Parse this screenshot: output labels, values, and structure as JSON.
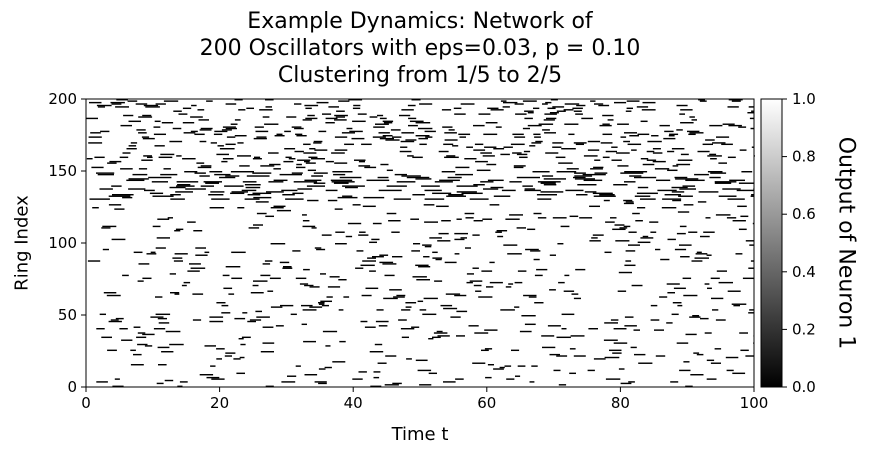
{
  "chart_data": {
    "type": "heatmap",
    "title_lines": [
      "Example Dynamics: Network of",
      "200 Oscillators with eps=0.03, p = 0.10",
      "Clustering from 1/5 to 2/5"
    ],
    "xlabel": "Time t",
    "ylabel": "Ring Index",
    "xlim": [
      0,
      100
    ],
    "ylim": [
      0,
      200
    ],
    "xticks": [
      "0",
      "20",
      "40",
      "60",
      "80",
      "100"
    ],
    "yticks": [
      "0",
      "50",
      "100",
      "150",
      "200"
    ],
    "colorbar": {
      "label": "Output of Neuron 1",
      "range": [
        0.0,
        1.0
      ],
      "ticks": [
        "0.0",
        "0.2",
        "0.4",
        "0.6",
        "0.8",
        "1.0"
      ],
      "colormap": "gray",
      "low_color": "#000000",
      "high_color": "#ffffff"
    },
    "regions": [
      {
        "y_range": [
          130,
          150
        ],
        "pattern": "strong clustered black bursts"
      },
      {
        "y_range": [
          150,
          200
        ],
        "pattern": "dense scattered black spikes"
      },
      {
        "y_range": [
          0,
          130
        ],
        "pattern": "sparse scattered black spikes"
      }
    ]
  }
}
